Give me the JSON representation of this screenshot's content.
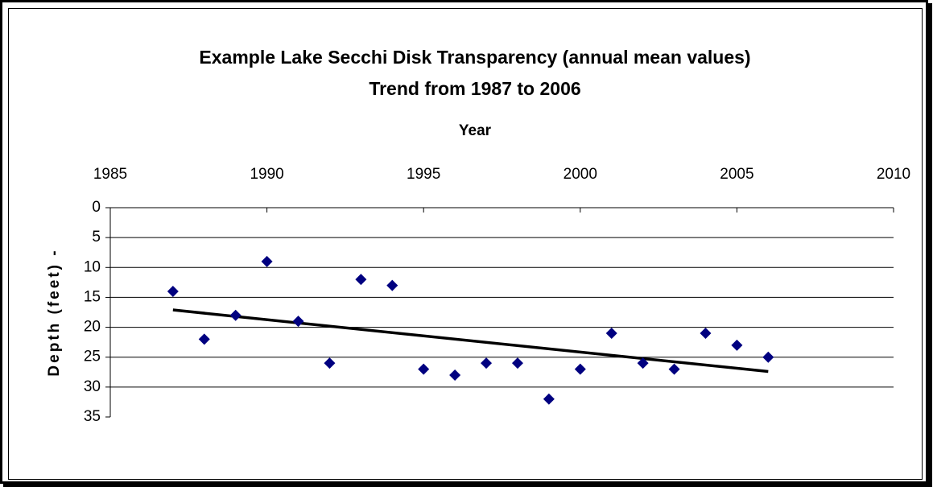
{
  "chart_data": {
    "type": "scatter",
    "title": "Example Lake Secchi Disk Transparency (annual mean values)",
    "subtitle": "Trend from 1987 to 2006",
    "x_label": "Year",
    "y_label": "Depth (feet)  -",
    "x": [
      1987,
      1988,
      1989,
      1990,
      1991,
      1992,
      1993,
      1994,
      1995,
      1996,
      1997,
      1998,
      1999,
      2000,
      2001,
      2002,
      2003,
      2004,
      2005,
      2006
    ],
    "values": [
      14,
      22,
      18,
      9,
      19,
      26,
      12,
      13,
      27,
      28,
      26,
      26,
      32,
      27,
      21,
      26,
      27,
      21,
      23,
      25
    ],
    "color": "#000080",
    "trend": {
      "x": [
        1987,
        2006
      ],
      "values": [
        17.1,
        27.4
      ],
      "color": "#000000"
    },
    "xlim": [
      1985,
      2010
    ],
    "xticks": [
      1985,
      1990,
      1995,
      2000,
      2005,
      2010
    ],
    "ylim": [
      0,
      35
    ],
    "yticks": [
      0,
      5,
      10,
      15,
      20,
      25,
      30,
      35
    ],
    "y_inverted": true,
    "x_axis_position": "top",
    "grid": true
  }
}
